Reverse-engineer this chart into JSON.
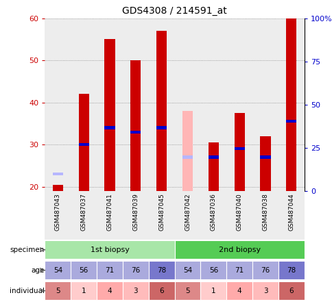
{
  "title": "GDS4308 / 214591_at",
  "samples": [
    "GSM487043",
    "GSM487037",
    "GSM487041",
    "GSM487039",
    "GSM487045",
    "GSM487042",
    "GSM487036",
    "GSM487040",
    "GSM487038",
    "GSM487044"
  ],
  "count_values": [
    20.5,
    42,
    55,
    50,
    57,
    null,
    30.5,
    37.5,
    32,
    60
  ],
  "percentile_values": [
    null,
    30,
    34,
    33,
    34,
    null,
    27,
    29,
    27,
    35.5
  ],
  "absent_value_values": [
    null,
    null,
    null,
    null,
    null,
    38,
    null,
    null,
    null,
    null
  ],
  "absent_rank_values": [
    23,
    null,
    null,
    null,
    null,
    27,
    null,
    null,
    null,
    null
  ],
  "ylim_left": [
    19,
    60
  ],
  "yticks_left": [
    20,
    30,
    40,
    50,
    60
  ],
  "ytick_labels_left": [
    "20",
    "30",
    "40",
    "50",
    "60"
  ],
  "ytick_labels_right": [
    "0",
    "25",
    "50",
    "75",
    "100%"
  ],
  "bar_width": 0.4,
  "count_color": "#cc0000",
  "percentile_color": "#0000cc",
  "absent_value_color": "#ffb6b6",
  "absent_rank_color": "#b6b6ff",
  "specimen_1st_color": "#a8e6a8",
  "specimen_2nd_color": "#55cc55",
  "age_color": "#aaaadd",
  "age_color_dark": "#7777cc",
  "individual_colors": [
    "#dd8888",
    "#ffcccc",
    "#ffaaaa",
    "#ffbbbb",
    "#cc6666",
    "#dd8888",
    "#ffcccc",
    "#ffaaaa",
    "#ffbbbb",
    "#cc6666"
  ],
  "ages": [
    54,
    56,
    71,
    76,
    78,
    54,
    56,
    71,
    76,
    78
  ],
  "individuals": [
    5,
    1,
    4,
    3,
    6,
    5,
    1,
    4,
    3,
    6
  ],
  "bg_color": "#ffffff",
  "axis_label_color_left": "#cc0000",
  "axis_label_color_right": "#0000cc",
  "grid_color": "#888888",
  "sample_bg_color": "#cccccc"
}
